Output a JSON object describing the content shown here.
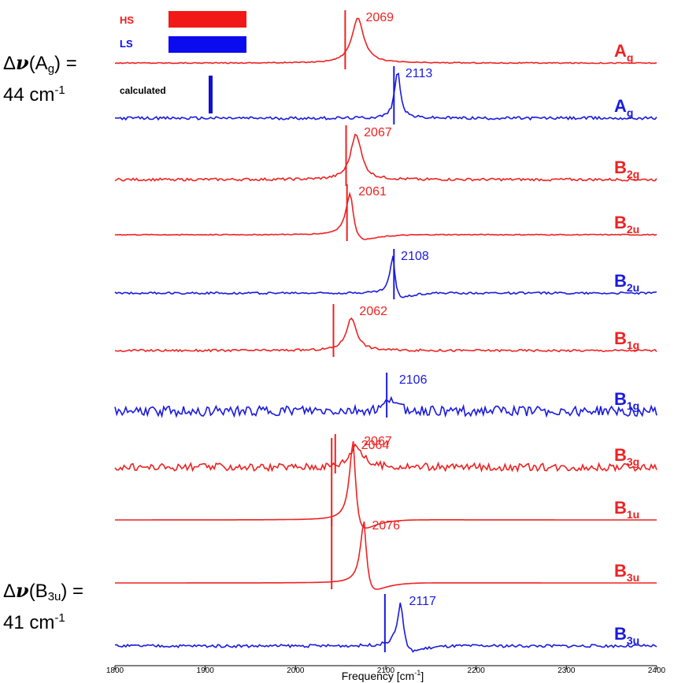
{
  "chart_data": {
    "type": "line",
    "xlabel": "Frequency [cm",
    "xlabel_sup": "-1",
    "xlabel_close": "]",
    "xlim": [
      1800,
      2400
    ],
    "xticks": [
      1800,
      1900,
      2000,
      2100,
      2200,
      2300,
      2400
    ],
    "stacked": true,
    "legend": {
      "position": "top-left",
      "items": [
        {
          "label": "HS",
          "color": "#f21818",
          "style": "bar"
        },
        {
          "label": "LS",
          "color": "#0b0bf0",
          "style": "bar"
        },
        {
          "label": "calculated",
          "color": "#1010d0",
          "style": "tick"
        }
      ]
    },
    "series": [
      {
        "name": "Ag",
        "sym": "A",
        "sub": "g",
        "spin": "HS",
        "color": "#ee2222",
        "peak": 2069,
        "peak_label": "2069",
        "calc": 2055,
        "width": 8,
        "shape": "peak",
        "noise": 0.02,
        "amp": 0.9
      },
      {
        "name": "Ag",
        "sym": "A",
        "sub": "g",
        "spin": "LS",
        "color": "#1a1ae0",
        "peak": 2113,
        "peak_label": "2113",
        "calc": 2109,
        "width": 4,
        "shape": "peak",
        "noise": 0.06,
        "amp": 0.95
      },
      {
        "name": "B2g",
        "sym": "B",
        "sub": "2g",
        "spin": "HS",
        "color": "#ee2222",
        "peak": 2067,
        "peak_label": "2067",
        "calc": 2056,
        "width": 7,
        "shape": "peak",
        "noise": 0.05,
        "amp": 0.9
      },
      {
        "name": "B2u",
        "sym": "B",
        "sub": "2u",
        "spin": "HS",
        "color": "#ee2222",
        "peak": 2061,
        "peak_label": "2061",
        "calc": 2057,
        "width": 6,
        "shape": "disp",
        "noise": 0.02,
        "amp": 0.9
      },
      {
        "name": "B2u",
        "sym": "B",
        "sub": "2u",
        "spin": "LS",
        "color": "#1a1ae0",
        "peak": 2108,
        "peak_label": "2108",
        "calc": 2109,
        "width": 4,
        "shape": "disp",
        "noise": 0.05,
        "amp": 0.9
      },
      {
        "name": "B1g",
        "sym": "B",
        "sub": "1g",
        "spin": "HS",
        "color": "#ee2222",
        "peak": 2062,
        "peak_label": "2062",
        "calc": 2042,
        "width": 7,
        "shape": "peak",
        "noise": 0.05,
        "amp": 0.75
      },
      {
        "name": "B1g",
        "sym": "B",
        "sub": "1g",
        "spin": "LS",
        "color": "#1a1ae0",
        "peak": 2106,
        "peak_label": "2106",
        "calc": 2101,
        "width": 6,
        "shape": "peak",
        "noise": 0.28,
        "amp": 0.4
      },
      {
        "name": "B3g",
        "sym": "B",
        "sub": "3g",
        "spin": "HS",
        "color": "#ee2222",
        "peak": 2067,
        "peak_label": "2067",
        "calc": 2044,
        "width": 8,
        "shape": "peak",
        "noise": 0.25,
        "amp": 0.75
      },
      {
        "name": "B1u",
        "sym": "B",
        "sub": "1u",
        "spin": "HS",
        "color": "#ee2222",
        "peak": 2064,
        "peak_label": "2064",
        "calc": 2040,
        "width": 5,
        "shape": "disp",
        "noise": 0.0,
        "amp": 1.0
      },
      {
        "name": "B3u",
        "sym": "B",
        "sub": "3u",
        "spin": "HS",
        "color": "#ee2222",
        "peak": 2076,
        "peak_label": "2076",
        "calc": 2040,
        "width": 5,
        "shape": "disp",
        "noise": 0.0,
        "amp": 1.0
      },
      {
        "name": "B3u",
        "sym": "B",
        "sub": "3u",
        "spin": "LS",
        "color": "#1a1ae0",
        "peak": 2117,
        "peak_label": "2117",
        "calc": 2099,
        "width": 5,
        "shape": "disp",
        "noise": 0.06,
        "amp": 0.9
      }
    ]
  },
  "annotations": {
    "ag": {
      "delta": "Δ",
      "nu": "ν",
      "open": "(A",
      "sub": "g",
      "close": ") =",
      "value": "44 cm",
      "sup": "-1"
    },
    "b3u": {
      "delta": "Δ",
      "nu": "ν",
      "open": "(B",
      "sub": "3u",
      "close": ") =",
      "value": "41 cm",
      "sup": "-1"
    }
  },
  "colors": {
    "hs": "#ee2222",
    "ls": "#1a1ae0",
    "axis": "#000000"
  }
}
